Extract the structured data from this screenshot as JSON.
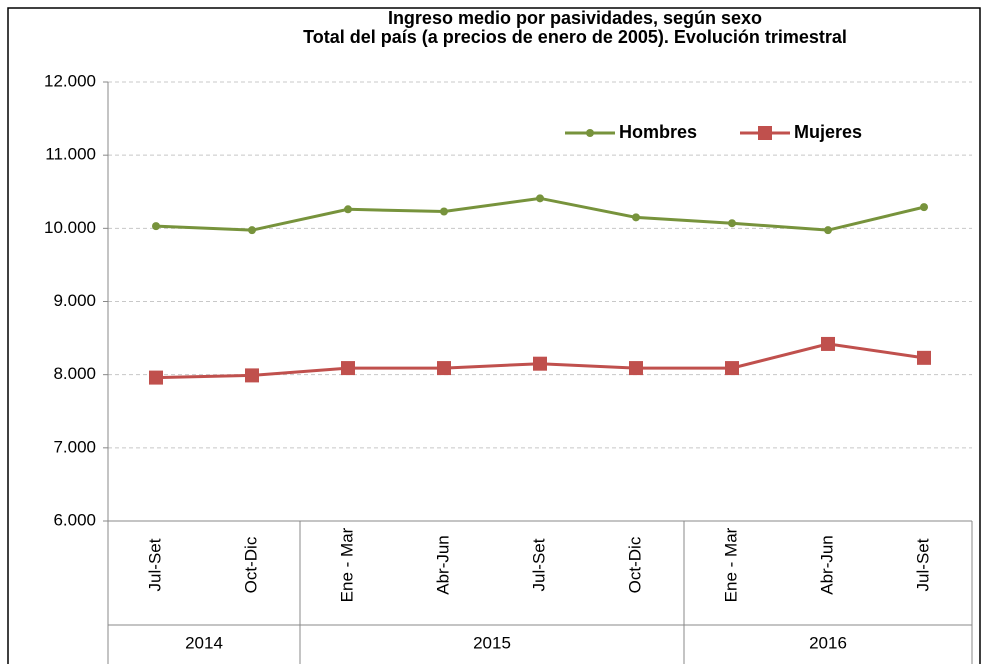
{
  "chart_data": {
    "type": "line",
    "title": "Ingreso medio por pasividades, según sexo",
    "subtitle": "Total del país (a precios de enero de 2005). Evolución trimestral",
    "categories": [
      "Jul-Set",
      "Oct-Dic",
      "Ene - Mar",
      "Abr-Jun",
      "Jul-Set",
      "Oct-Dic",
      "Ene - Mar",
      "Abr-Jun",
      "Jul-Set"
    ],
    "year_groups": [
      {
        "label": "2014",
        "size": 2
      },
      {
        "label": "2015",
        "size": 4
      },
      {
        "label": "2016",
        "size": 3
      }
    ],
    "series": [
      {
        "name": "Hombres",
        "color": "#77933c",
        "marker": "circle",
        "values": [
          10030,
          9975,
          10260,
          10230,
          10410,
          10150,
          10070,
          9975,
          10290
        ]
      },
      {
        "name": "Mujeres",
        "color": "#c0504d",
        "marker": "square",
        "values": [
          7960,
          7990,
          8090,
          8090,
          8150,
          8090,
          8090,
          8420,
          8230
        ]
      }
    ],
    "ylim": [
      6000,
      12000
    ],
    "yticks": [
      {
        "value": 6000,
        "label": "6.000"
      },
      {
        "value": 7000,
        "label": "7.000"
      },
      {
        "value": 8000,
        "label": "8.000"
      },
      {
        "value": 9000,
        "label": "9.000"
      },
      {
        "value": 10000,
        "label": "10.000"
      },
      {
        "value": 11000,
        "label": "11.000"
      },
      {
        "value": 12000,
        "label": "12.000"
      }
    ],
    "grid": true,
    "legend": "top-right"
  }
}
